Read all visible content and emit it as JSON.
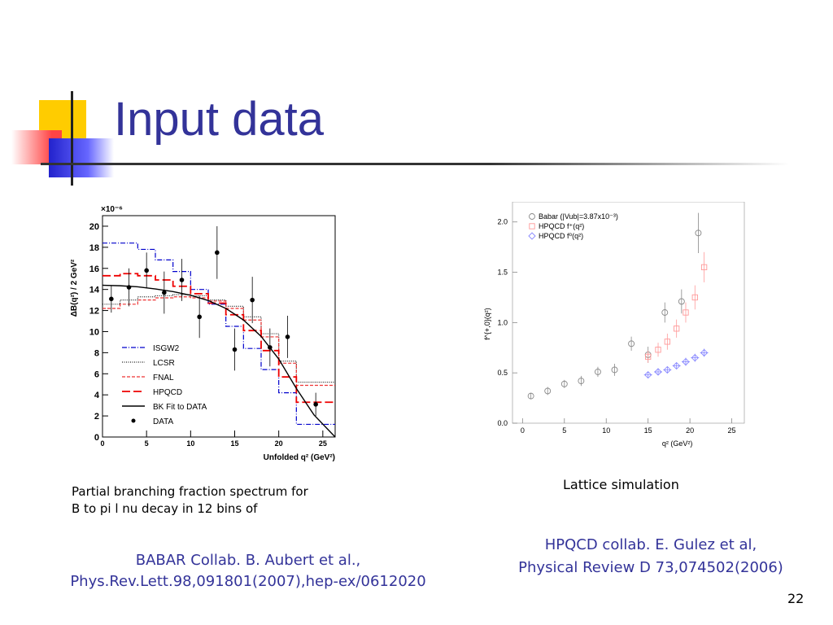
{
  "slide": {
    "title": "Input data",
    "page_number": "22",
    "left_caption_line1": "Partial branching fraction spectrum for",
    "left_caption_line2": "B to pi l nu decay in 12 bins of",
    "left_ref_line1": "BABAR Collab. B. Aubert et al.,",
    "left_ref_line2": "Phys.Rev.Lett.98,091801(2007),hep-ex/0612020",
    "right_caption": "Lattice simulation",
    "right_ref_line1": "HPQCD collab. E. Gulez et al,",
    "right_ref_line2": "Physical Review D 73,074502(2006)",
    "colors": {
      "title": "#333399",
      "yellow": "#ffcc00",
      "red": "#ff3333",
      "blue": "#3333cc"
    }
  },
  "chart_data": [
    {
      "type": "line",
      "scale_label": "×10⁻⁶",
      "xlabel": "Unfolded q² (GeV²)",
      "ylabel": "ΔB(q²) / 2 GeV²",
      "xlim": [
        0,
        26.4
      ],
      "ylim": [
        0,
        21
      ],
      "x_ticks": [
        0,
        5,
        10,
        15,
        20,
        25
      ],
      "y_ticks": [
        0,
        2,
        4,
        6,
        8,
        10,
        12,
        14,
        16,
        18,
        20
      ],
      "bin_edges": [
        0,
        2,
        4,
        6,
        8,
        10,
        12,
        14,
        16,
        18,
        20,
        22,
        26.4
      ],
      "series": [
        {
          "name": "ISGW2",
          "style": "dashdot",
          "color": "#0000cc",
          "values": [
            18.4,
            18.4,
            17.8,
            16.8,
            15.7,
            14.0,
            12.6,
            10.5,
            8.4,
            6.4,
            4.2,
            1.2
          ]
        },
        {
          "name": "LCSR",
          "style": "dotted",
          "color": "#222222",
          "values": [
            12.6,
            13.0,
            13.3,
            13.4,
            13.5,
            13.4,
            13.0,
            12.4,
            11.4,
            9.8,
            7.2,
            5.2
          ]
        },
        {
          "name": "FNAL",
          "style": "shortdash",
          "color": "#ee3333",
          "values": [
            12.2,
            12.6,
            13.0,
            13.2,
            13.3,
            13.2,
            12.9,
            12.2,
            11.1,
            9.5,
            7.0,
            4.9
          ]
        },
        {
          "name": "HPQCD",
          "style": "longdash",
          "color": "#ee0000",
          "values": [
            15.3,
            15.5,
            15.3,
            14.9,
            14.3,
            13.6,
            12.7,
            11.6,
            10.1,
            8.2,
            5.7,
            3.3
          ]
        }
      ],
      "fit": {
        "name": "BK Fit to DATA",
        "color": "#000000",
        "x": [
          0,
          2,
          4,
          6,
          8,
          10,
          12,
          14,
          16,
          18,
          20,
          22,
          24,
          26.4
        ],
        "y": [
          14.4,
          14.35,
          14.25,
          14.05,
          13.8,
          13.45,
          12.95,
          12.2,
          11.1,
          9.55,
          7.4,
          4.6,
          2.1,
          0.0
        ]
      },
      "data_points": {
        "name": "DATA",
        "color": "#000000",
        "x": [
          1,
          3,
          5,
          7,
          9,
          11,
          13,
          15,
          17,
          19,
          21,
          24.2
        ],
        "y": [
          13.1,
          14.2,
          15.8,
          13.7,
          14.9,
          11.4,
          17.5,
          8.3,
          13.0,
          8.5,
          9.5,
          3.1
        ],
        "err": [
          1.3,
          1.8,
          1.7,
          2.0,
          2.0,
          2.0,
          2.5,
          2.0,
          2.2,
          1.8,
          2.0,
          1.1
        ]
      }
    },
    {
      "type": "scatter",
      "xlabel": "q² (GeV²)",
      "ylabel": "f^{+,0}(q²)",
      "xlim": [
        -1.2,
        26.5
      ],
      "ylim": [
        0,
        2.2
      ],
      "x_ticks": [
        0,
        5,
        10,
        15,
        20,
        25
      ],
      "y_ticks": [
        0.0,
        0.5,
        1.0,
        1.5,
        2.0
      ],
      "series": [
        {
          "name": "Babar (|Vub|=3.87x10⁻³)",
          "marker": "circle",
          "color": "#888888",
          "x": [
            1,
            3,
            5,
            7,
            9,
            11,
            13,
            15,
            17,
            19,
            21
          ],
          "y": [
            0.27,
            0.32,
            0.39,
            0.42,
            0.51,
            0.53,
            0.79,
            0.68,
            1.1,
            1.21,
            1.89
          ],
          "err": [
            0.03,
            0.04,
            0.04,
            0.05,
            0.05,
            0.06,
            0.07,
            0.08,
            0.1,
            0.12,
            0.2
          ]
        },
        {
          "name": "HPQCD f⁺(q²)",
          "marker": "square",
          "color": "#ff9999",
          "x": [
            15,
            16.2,
            17.3,
            18.4,
            19.5,
            20.6,
            21.7
          ],
          "y": [
            0.66,
            0.73,
            0.81,
            0.94,
            1.1,
            1.25,
            1.55
          ],
          "err": [
            0.06,
            0.07,
            0.08,
            0.09,
            0.1,
            0.12,
            0.15
          ]
        },
        {
          "name": "HPQCD f⁰(q²)",
          "marker": "diamond",
          "color": "#8888ff",
          "x": [
            15,
            16.2,
            17.3,
            18.4,
            19.5,
            20.6,
            21.7
          ],
          "y": [
            0.48,
            0.51,
            0.53,
            0.57,
            0.61,
            0.65,
            0.7
          ],
          "err": [
            0.03,
            0.03,
            0.03,
            0.03,
            0.04,
            0.04,
            0.04
          ]
        }
      ]
    }
  ]
}
